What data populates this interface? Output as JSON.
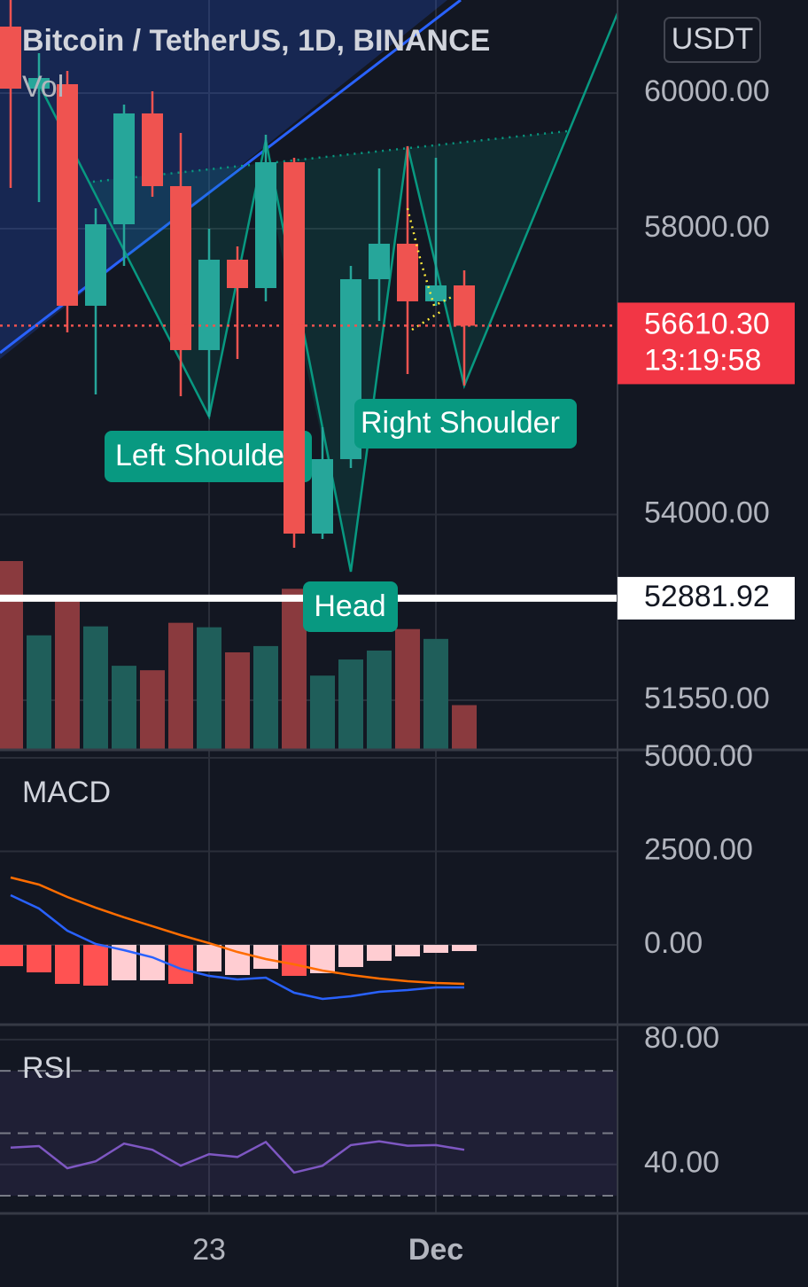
{
  "chart_data": [
    {
      "type": "candlestick",
      "title": "Bitcoin / TetherUS, 1D, BINANCE",
      "currency": "USDT",
      "categories": [
        null,
        null,
        null,
        null,
        null,
        null,
        null,
        "23",
        null,
        null,
        null,
        null,
        null,
        null,
        null,
        "Dec",
        null
      ],
      "open": [
        61005,
        60066,
        60133,
        56893,
        58064,
        59695,
        58620,
        56266,
        57552,
        57145,
        58972,
        53743,
        54753,
        57272,
        57782,
        56956,
        57183
      ],
      "high": [
        61412,
        60601,
        60333,
        58296,
        59827,
        60027,
        59405,
        58000,
        57744,
        59378,
        59037,
        55191,
        57463,
        58880,
        59208,
        59037,
        57399
      ],
      "low": [
        58594,
        58387,
        56516,
        55646,
        57463,
        58465,
        55621,
        55338,
        56141,
        56956,
        53553,
        53672,
        54632,
        56679,
        55930,
        56893,
        55769
      ],
      "close": [
        60066,
        60226,
        56893,
        58064,
        59695,
        58620,
        56266,
        57552,
        57145,
        58972,
        53743,
        54753,
        57272,
        57782,
        56956,
        57183,
        56610
      ],
      "up_color": "#26a69a",
      "down_color": "#ef5350",
      "ylim": [
        50926,
        61412
      ],
      "log_scale": true,
      "yticks": [
        {
          "value": 51550,
          "label": "51550.00"
        },
        {
          "value": 54000,
          "label": "54000.00"
        },
        {
          "value": 58000,
          "label": "58000.00"
        },
        {
          "value": 60000,
          "label": "60000.00"
        }
      ],
      "grid": true,
      "last_price": {
        "value": 56610.3,
        "label": "56610.30"
      },
      "countdown": "13:19:58",
      "price_line": 52881.92,
      "volume": {
        "name": "Vol",
        "values": [
          210,
          127,
          167,
          137,
          93,
          88,
          141,
          136,
          108,
          115,
          179,
          82,
          100,
          110,
          134,
          123,
          49
        ],
        "up_color": "#1f5e5a",
        "down_color": "#8a3a3e"
      },
      "annotations": [
        "Left Shoulder",
        "Right Shoulder",
        "Head"
      ]
    },
    {
      "type": "macd",
      "title": "MACD",
      "ylim": [
        -2109,
        5190
      ],
      "yticks": [
        {
          "value": 0,
          "label": "0.00"
        },
        {
          "value": 2500,
          "label": "2500.00"
        },
        {
          "value": 5000,
          "label": "5000.00"
        }
      ],
      "histogram": {
        "values": [
          -569,
          -735,
          -1043,
          -1090,
          -948,
          -948,
          -1043,
          -711,
          -806,
          -640,
          -829,
          -758,
          -592,
          -427,
          -308,
          -213,
          -166
        ],
        "colors": [
          "#ff5252",
          "#ff5252",
          "#ff5252",
          "#ff5252",
          "#ffcdd2",
          "#ffcdd2",
          "#ff5252",
          "#ffcdd2",
          "#ffcdd2",
          "#ffcdd2",
          "#ff5252",
          "#ffcdd2",
          "#ffcdd2",
          "#ffcdd2",
          "#ffcdd2",
          "#ffcdd2",
          "#ffcdd2"
        ]
      },
      "series": [
        {
          "color": "#2962ff",
          "values": [
            1327,
            972,
            379,
            24,
            -142,
            -332,
            -640,
            -830,
            -924,
            -877,
            -1280,
            -1446,
            -1375,
            -1256,
            -1209,
            -1138,
            -1138
          ]
        },
        {
          "color": "#ff6d00",
          "values": [
            1801,
            1612,
            1280,
            995,
            735,
            498,
            261,
            47,
            -190,
            -379,
            -521,
            -687,
            -806,
            -901,
            -972,
            -1019,
            -1043
          ]
        }
      ]
    },
    {
      "type": "rsi",
      "title": "RSI",
      "ylim": [
        24.6,
        84.5
      ],
      "yticks": [
        {
          "value": 40,
          "label": "40.00"
        },
        {
          "value": 80,
          "label": "80.00"
        }
      ],
      "levels": [
        30,
        50,
        70
      ],
      "series": [
        {
          "color": "#7e57c2",
          "values": [
            45.4,
            45.9,
            38.8,
            41.0,
            46.7,
            44.7,
            39.6,
            43.3,
            42.4,
            47.2,
            37.4,
            39.6,
            46.2,
            47.4,
            46.0,
            46.2,
            44.7
          ]
        }
      ]
    }
  ]
}
